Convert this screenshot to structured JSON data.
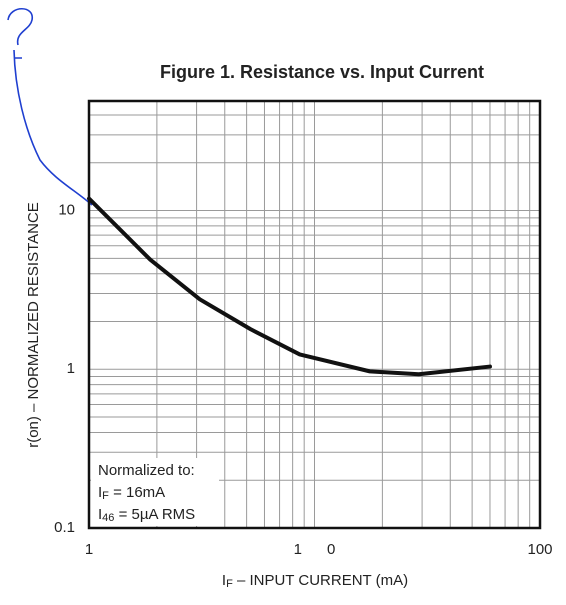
{
  "chart_data": {
    "type": "line",
    "title": "Figure 1. Resistance vs. Input Current",
    "x_label": [
      "I",
      "F",
      " – INPUT CURRENT (mA)"
    ],
    "y_label": "r(on) – NORMALIZED RESISTANCE",
    "x": [
      1,
      1.87,
      3.1,
      5.2,
      8.6,
      17.6,
      29,
      60
    ],
    "series": [
      {
        "name": "r(on)",
        "color": "#111111",
        "values": [
          11.9,
          4.9,
          2.76,
          1.79,
          1.24,
          0.97,
          0.93,
          1.04
        ]
      }
    ],
    "xscale": "log",
    "yscale": "log",
    "xlim": [
      1,
      100
    ],
    "ylim": [
      0.1,
      49
    ],
    "xticks": [
      1,
      {
        "value": 10,
        "label": "1      0"
      },
      100
    ],
    "yticks": [
      0.1,
      1,
      10
    ],
    "xgrid": [
      2,
      3,
      4,
      5,
      6,
      7,
      8,
      9,
      10,
      20,
      30,
      40,
      50,
      60,
      70,
      80,
      90
    ],
    "ygrid": [
      0.2,
      0.3,
      0.4,
      0.5,
      0.6,
      0.7,
      0.8,
      0.9,
      1,
      2,
      3,
      4,
      5,
      6,
      7,
      8,
      9,
      10,
      20,
      30,
      40
    ],
    "grid": true,
    "annotation": [
      "Normalized to:",
      [
        "I",
        "F",
        " = 16mA"
      ],
      [
        "I",
        "46",
        " = 5µA RMS"
      ]
    ]
  }
}
